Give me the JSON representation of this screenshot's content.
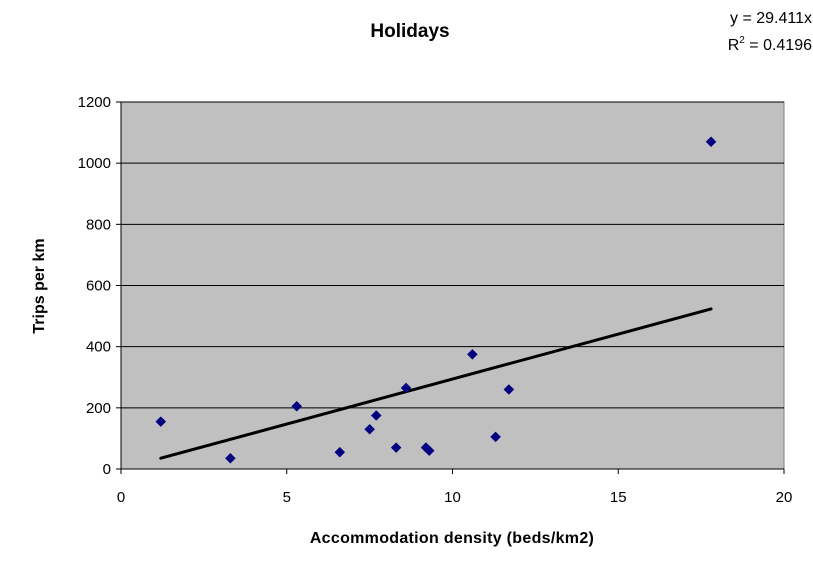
{
  "chart_data": {
    "type": "scatter",
    "title": "Holidays",
    "xlabel": "Accommodation density (beds/km2)",
    "ylabel": "Trips per km",
    "xlim": [
      0,
      20
    ],
    "ylim": [
      0,
      1200
    ],
    "x_ticks": [
      0,
      5,
      10,
      15,
      20
    ],
    "y_ticks": [
      0,
      200,
      400,
      600,
      800,
      1000,
      1200
    ],
    "grid": "horizontal",
    "legend": "none",
    "colors": {
      "plot_bg": "#c0c0c0",
      "marker": "#000080",
      "trendline": "#000000",
      "grid": "#000000"
    },
    "points": [
      {
        "x": 1.2,
        "y": 155
      },
      {
        "x": 3.3,
        "y": 35
      },
      {
        "x": 5.3,
        "y": 205
      },
      {
        "x": 6.6,
        "y": 55
      },
      {
        "x": 7.5,
        "y": 130
      },
      {
        "x": 7.7,
        "y": 175
      },
      {
        "x": 8.3,
        "y": 70
      },
      {
        "x": 8.6,
        "y": 265
      },
      {
        "x": 9.2,
        "y": 70
      },
      {
        "x": 9.3,
        "y": 60
      },
      {
        "x": 10.6,
        "y": 375
      },
      {
        "x": 11.3,
        "y": 105
      },
      {
        "x": 11.7,
        "y": 260
      },
      {
        "x": 17.8,
        "y": 1070
      }
    ],
    "trendline": {
      "slope": 29.411,
      "x_range": [
        1.2,
        17.8
      ],
      "equation": "y = 29.411x",
      "r2_prefix": "R",
      "r2_sup": "2",
      "r2_suffix": " = 0.4196"
    }
  }
}
